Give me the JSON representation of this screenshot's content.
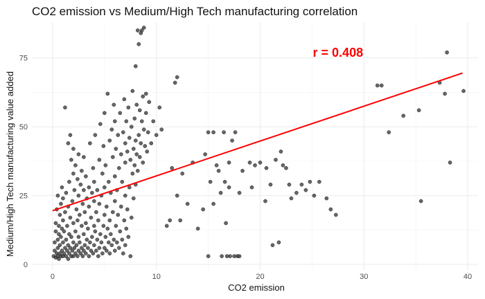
{
  "chart_data": {
    "type": "scatter",
    "title": "CO2 emission vs Medium/High Tech manufacturing correlation",
    "xlabel": "CO2 emission",
    "ylabel": "Medium/High Tech manufacturing value added",
    "xlim": [
      -2,
      41
    ],
    "ylim": [
      -2,
      88
    ],
    "x_ticks": [
      0,
      10,
      20,
      30,
      40
    ],
    "y_ticks": [
      0,
      25,
      50,
      75
    ],
    "grid": true,
    "annotation": {
      "text": "r = 0.408",
      "x": 27.5,
      "y": 77,
      "color": "#ff0000"
    },
    "regression_line": {
      "x": [
        0,
        39.5
      ],
      "y": [
        19.5,
        69.5
      ],
      "color": "#ff0000"
    },
    "point_color": "#333333",
    "points": [
      [
        0.1,
        3
      ],
      [
        0.2,
        5
      ],
      [
        0.2,
        8
      ],
      [
        0.3,
        2.5
      ],
      [
        0.3,
        12
      ],
      [
        0.3,
        15
      ],
      [
        0.4,
        4
      ],
      [
        0.4,
        20
      ],
      [
        0.5,
        3
      ],
      [
        0.5,
        6
      ],
      [
        0.5,
        9
      ],
      [
        0.5,
        25
      ],
      [
        0.6,
        2
      ],
      [
        0.6,
        11
      ],
      [
        0.6,
        14
      ],
      [
        0.7,
        4
      ],
      [
        0.7,
        7
      ],
      [
        0.7,
        18
      ],
      [
        0.8,
        3
      ],
      [
        0.8,
        10
      ],
      [
        0.8,
        22
      ],
      [
        0.9,
        5
      ],
      [
        0.9,
        13
      ],
      [
        0.9,
        28
      ],
      [
        1.0,
        3
      ],
      [
        1.0,
        8
      ],
      [
        1.0,
        16
      ],
      [
        1.0,
        24
      ],
      [
        1.1,
        4
      ],
      [
        1.1,
        12
      ],
      [
        1.2,
        6
      ],
      [
        1.2,
        19
      ],
      [
        1.2,
        57
      ],
      [
        1.3,
        3
      ],
      [
        1.3,
        9
      ],
      [
        1.3,
        26
      ],
      [
        1.4,
        5
      ],
      [
        1.4,
        14
      ],
      [
        1.5,
        2
      ],
      [
        1.5,
        7
      ],
      [
        1.5,
        21
      ],
      [
        1.5,
        44
      ],
      [
        1.6,
        4
      ],
      [
        1.6,
        11
      ],
      [
        1.6,
        30
      ],
      [
        1.7,
        6
      ],
      [
        1.7,
        17
      ],
      [
        1.7,
        47
      ],
      [
        1.8,
        3
      ],
      [
        1.8,
        10
      ],
      [
        1.8,
        38
      ],
      [
        1.9,
        5
      ],
      [
        1.9,
        23
      ],
      [
        2.0,
        3
      ],
      [
        2.0,
        8
      ],
      [
        2.0,
        15
      ],
      [
        2.0,
        33
      ],
      [
        2.0,
        42
      ],
      [
        2.1,
        6
      ],
      [
        2.1,
        27
      ],
      [
        2.2,
        4
      ],
      [
        2.2,
        12
      ],
      [
        2.2,
        36
      ],
      [
        2.3,
        7
      ],
      [
        2.3,
        20
      ],
      [
        2.4,
        3
      ],
      [
        2.4,
        16
      ],
      [
        2.4,
        31
      ],
      [
        2.5,
        5
      ],
      [
        2.5,
        10
      ],
      [
        2.5,
        25
      ],
      [
        2.5,
        40
      ],
      [
        2.6,
        8
      ],
      [
        2.6,
        18
      ],
      [
        2.7,
        4
      ],
      [
        2.7,
        29
      ],
      [
        2.8,
        6
      ],
      [
        2.8,
        14
      ],
      [
        2.8,
        34
      ],
      [
        2.9,
        3
      ],
      [
        2.9,
        22
      ],
      [
        3.0,
        5
      ],
      [
        3.0,
        11
      ],
      [
        3.0,
        27
      ],
      [
        3.0,
        39
      ],
      [
        3.1,
        7
      ],
      [
        3.1,
        19
      ],
      [
        3.2,
        4
      ],
      [
        3.2,
        15
      ],
      [
        3.2,
        32
      ],
      [
        3.3,
        9
      ],
      [
        3.3,
        24
      ],
      [
        3.4,
        6
      ],
      [
        3.4,
        13
      ],
      [
        3.5,
        3
      ],
      [
        3.5,
        21
      ],
      [
        3.5,
        28
      ],
      [
        3.6,
        8
      ],
      [
        3.6,
        44
      ],
      [
        3.7,
        5
      ],
      [
        3.7,
        17
      ],
      [
        3.8,
        10
      ],
      [
        3.8,
        26
      ],
      [
        3.9,
        4
      ],
      [
        3.9,
        35
      ],
      [
        4.0,
        7
      ],
      [
        4.0,
        14
      ],
      [
        4.0,
        23
      ],
      [
        4.0,
        30
      ],
      [
        4.1,
        12
      ],
      [
        4.1,
        47
      ],
      [
        4.2,
        5
      ],
      [
        4.2,
        19
      ],
      [
        4.3,
        9
      ],
      [
        4.3,
        27
      ],
      [
        4.4,
        3
      ],
      [
        4.4,
        16
      ],
      [
        4.5,
        6
      ],
      [
        4.5,
        22
      ],
      [
        4.5,
        38
      ],
      [
        4.6,
        11
      ],
      [
        4.6,
        51
      ],
      [
        4.7,
        8
      ],
      [
        4.7,
        25
      ],
      [
        4.8,
        4
      ],
      [
        4.8,
        33
      ],
      [
        4.9,
        14
      ],
      [
        4.9,
        43
      ],
      [
        5.0,
        6
      ],
      [
        5.0,
        18
      ],
      [
        5.0,
        28
      ],
      [
        5.0,
        55
      ],
      [
        5.1,
        10
      ],
      [
        5.1,
        36
      ],
      [
        5.2,
        5
      ],
      [
        5.2,
        21
      ],
      [
        5.3,
        13
      ],
      [
        5.3,
        62
      ],
      [
        5.4,
        8
      ],
      [
        5.4,
        30
      ],
      [
        5.5,
        4
      ],
      [
        5.5,
        16
      ],
      [
        5.5,
        45
      ],
      [
        5.6,
        11
      ],
      [
        5.6,
        26
      ],
      [
        5.7,
        7
      ],
      [
        5.7,
        49
      ],
      [
        5.8,
        19
      ],
      [
        5.8,
        39
      ],
      [
        5.9,
        9
      ],
      [
        5.9,
        58
      ],
      [
        6.0,
        5
      ],
      [
        6.0,
        23
      ],
      [
        6.0,
        32
      ],
      [
        6.0,
        52
      ],
      [
        6.1,
        14
      ],
      [
        6.1,
        42
      ],
      [
        6.2,
        8
      ],
      [
        6.2,
        27
      ],
      [
        6.3,
        18
      ],
      [
        6.3,
        47
      ],
      [
        6.4,
        6
      ],
      [
        6.4,
        35
      ],
      [
        6.5,
        12
      ],
      [
        6.5,
        55
      ],
      [
        6.6,
        21
      ],
      [
        6.6,
        40
      ],
      [
        6.7,
        9
      ],
      [
        6.7,
        30
      ],
      [
        6.8,
        4
      ],
      [
        6.8,
        48
      ],
      [
        6.9,
        16
      ],
      [
        6.9,
        60
      ],
      [
        7.0,
        7
      ],
      [
        7.0,
        25
      ],
      [
        7.0,
        37
      ],
      [
        7.0,
        44
      ],
      [
        7.1,
        13
      ],
      [
        7.1,
        52
      ],
      [
        7.2,
        20
      ],
      [
        7.2,
        41
      ],
      [
        7.3,
        10
      ],
      [
        7.3,
        57
      ],
      [
        7.4,
        28
      ],
      [
        7.4,
        46
      ],
      [
        7.5,
        3
      ],
      [
        7.5,
        38
      ],
      [
        7.6,
        17
      ],
      [
        7.6,
        50
      ],
      [
        7.7,
        33
      ],
      [
        7.7,
        63
      ],
      [
        7.8,
        24
      ],
      [
        7.8,
        42
      ],
      [
        7.9,
        36
      ],
      [
        7.9,
        53
      ],
      [
        8.0,
        29
      ],
      [
        8.0,
        45
      ],
      [
        8.0,
        72
      ],
      [
        8.1,
        40
      ],
      [
        8.1,
        58
      ],
      [
        8.2,
        34
      ],
      [
        8.2,
        85
      ],
      [
        8.3,
        47
      ],
      [
        8.3,
        80
      ],
      [
        8.4,
        39
      ],
      [
        8.4,
        56
      ],
      [
        8.5,
        44
      ],
      [
        8.5,
        84
      ],
      [
        8.6,
        52
      ],
      [
        8.6,
        85
      ],
      [
        8.7,
        37
      ],
      [
        8.7,
        61
      ],
      [
        8.8,
        49
      ],
      [
        8.8,
        86
      ],
      [
        8.9,
        43
      ],
      [
        9.0,
        55
      ],
      [
        9.0,
        62
      ],
      [
        9.1,
        41
      ],
      [
        9.2,
        48
      ],
      [
        9.3,
        59
      ],
      [
        9.5,
        44
      ],
      [
        9.7,
        52
      ],
      [
        10.0,
        47
      ],
      [
        10.3,
        57
      ],
      [
        10.5,
        49
      ],
      [
        11.0,
        14
      ],
      [
        11.3,
        16
      ],
      [
        11.5,
        35
      ],
      [
        11.8,
        66
      ],
      [
        12.0,
        68
      ],
      [
        12.0,
        25
      ],
      [
        12.3,
        16
      ],
      [
        12.5,
        33
      ],
      [
        13.0,
        22
      ],
      [
        13.5,
        37
      ],
      [
        14.0,
        13
      ],
      [
        14.5,
        20
      ],
      [
        14.7,
        40
      ],
      [
        15.0,
        3
      ],
      [
        15.0,
        48
      ],
      [
        15.2,
        30
      ],
      [
        15.5,
        48
      ],
      [
        15.5,
        22
      ],
      [
        15.8,
        36
      ],
      [
        16.0,
        34
      ],
      [
        16.2,
        26
      ],
      [
        16.3,
        3
      ],
      [
        16.5,
        48
      ],
      [
        16.6,
        30
      ],
      [
        16.7,
        15
      ],
      [
        16.8,
        3
      ],
      [
        17.0,
        37
      ],
      [
        17.0,
        28
      ],
      [
        17.1,
        3
      ],
      [
        17.3,
        45
      ],
      [
        17.5,
        3
      ],
      [
        17.6,
        48
      ],
      [
        17.8,
        3
      ],
      [
        18.0,
        3
      ],
      [
        18.0,
        26
      ],
      [
        18.3,
        34
      ],
      [
        19.0,
        37
      ],
      [
        19.2,
        28
      ],
      [
        19.5,
        36
      ],
      [
        20.0,
        37
      ],
      [
        20.5,
        23
      ],
      [
        20.6,
        35
      ],
      [
        21.0,
        29
      ],
      [
        21.2,
        7
      ],
      [
        21.5,
        38
      ],
      [
        21.8,
        8
      ],
      [
        22.0,
        41
      ],
      [
        22.2,
        36
      ],
      [
        22.5,
        35
      ],
      [
        22.8,
        29
      ],
      [
        23.0,
        24
      ],
      [
        23.5,
        26
      ],
      [
        24.0,
        29
      ],
      [
        24.4,
        27
      ],
      [
        24.8,
        30
      ],
      [
        25.2,
        25
      ],
      [
        25.7,
        30
      ],
      [
        26.4,
        24
      ],
      [
        26.8,
        20
      ],
      [
        27.3,
        18
      ],
      [
        31.3,
        65
      ],
      [
        31.7,
        65
      ],
      [
        32.4,
        48
      ],
      [
        33.8,
        54
      ],
      [
        35.3,
        56
      ],
      [
        35.5,
        23
      ],
      [
        37.3,
        66
      ],
      [
        37.8,
        62
      ],
      [
        38.3,
        37
      ],
      [
        38.0,
        77
      ],
      [
        39.6,
        63
      ]
    ]
  }
}
